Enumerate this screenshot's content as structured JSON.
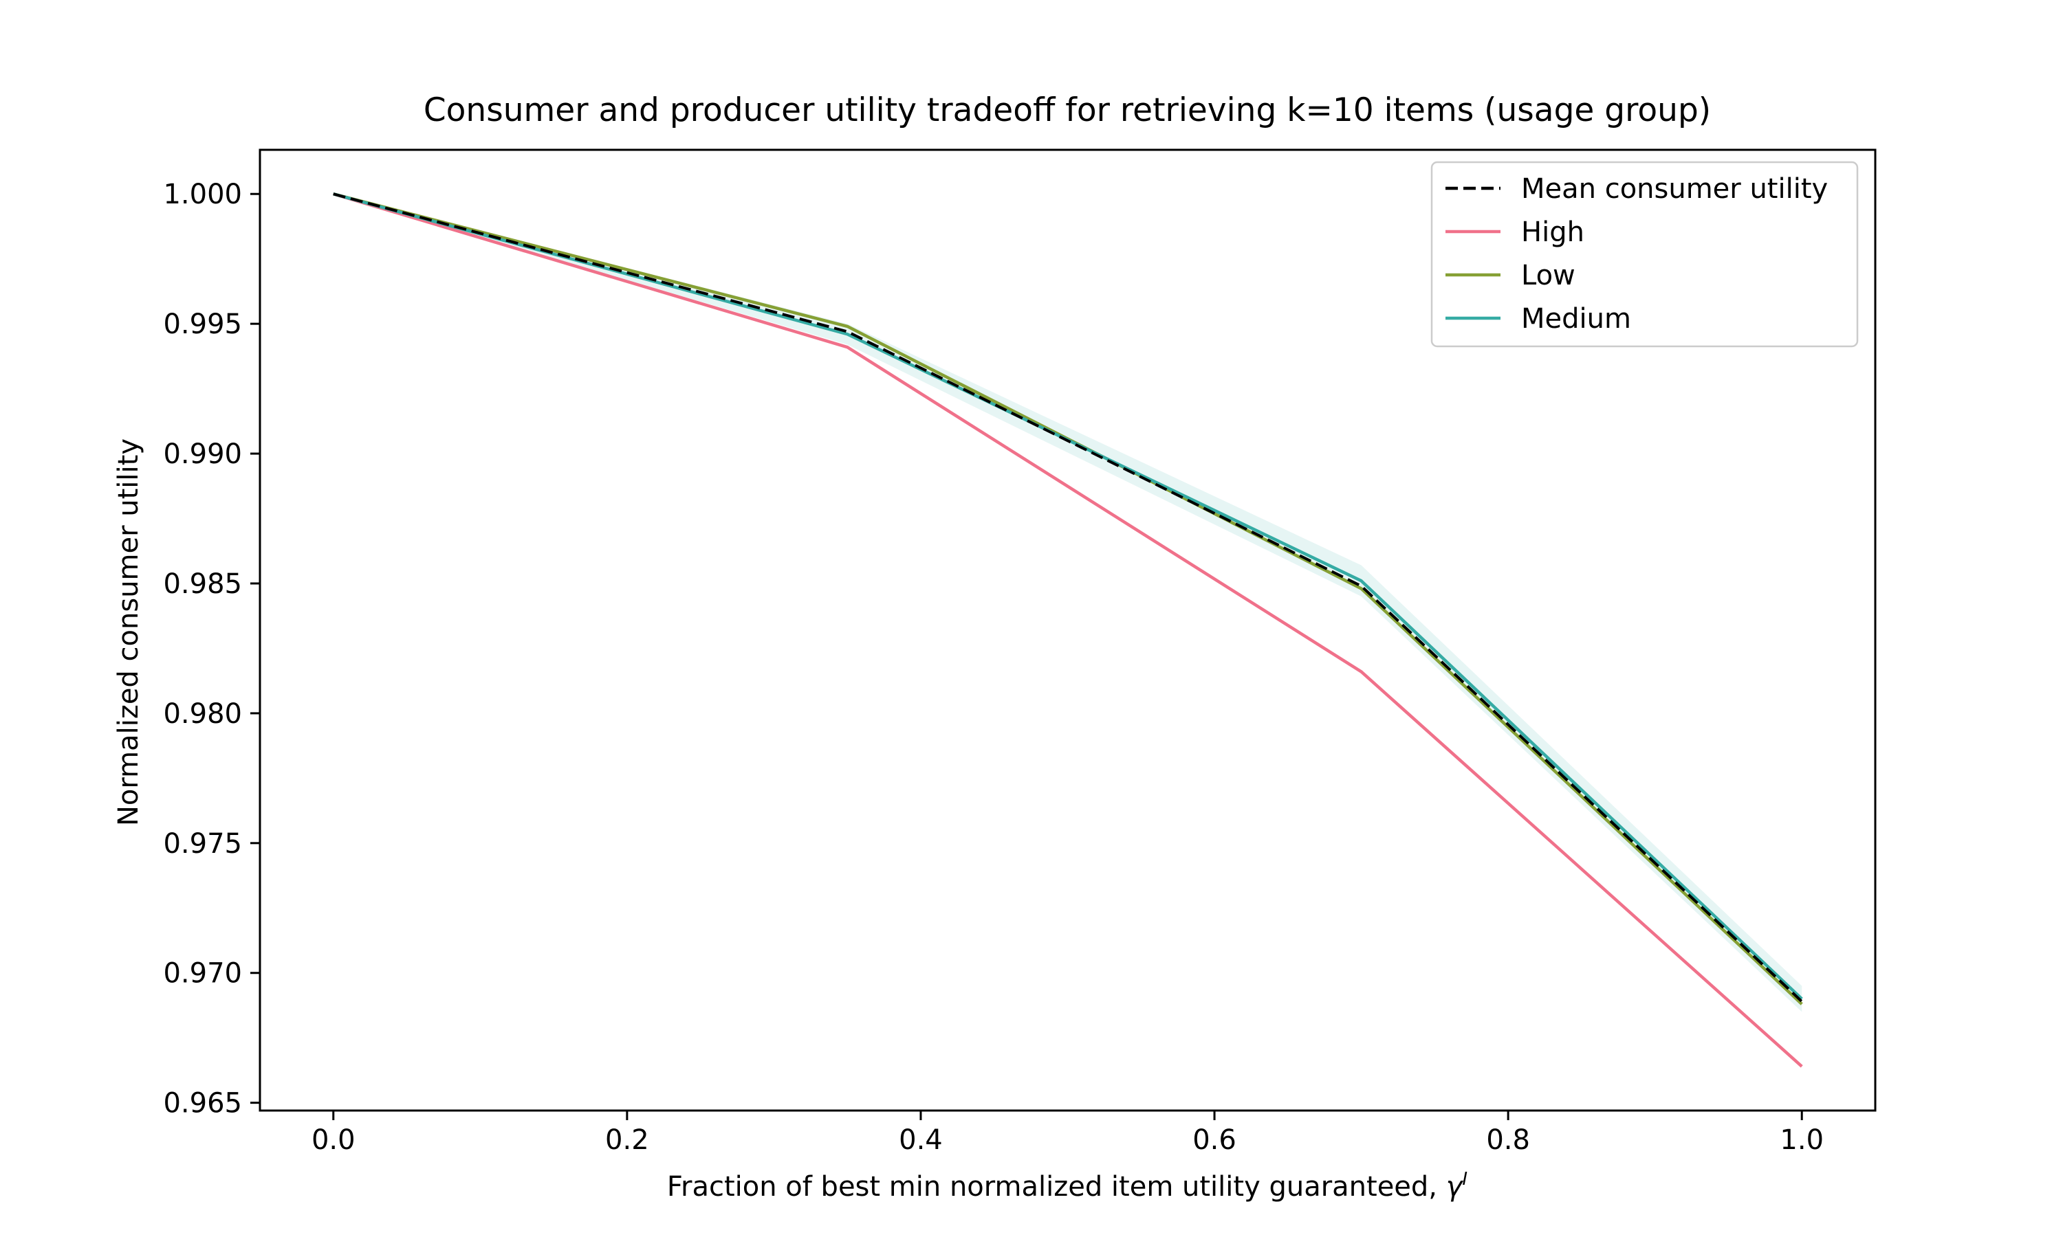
{
  "chart_data": {
    "type": "line",
    "title": "Consumer and producer utility tradeoff for retrieving k=10 items (usage  group)",
    "xlabel": "Fraction of best min normalized item utility guaranteed, ",
    "xlabel_symbol": "γ",
    "xlabel_superscript": "I",
    "ylabel": "Normalized consumer utility",
    "xlim": [
      -0.05,
      1.05
    ],
    "ylim": [
      0.9647,
      1.0017
    ],
    "x_ticks": [
      0.0,
      0.2,
      0.4,
      0.6,
      0.8,
      1.0
    ],
    "x_tick_labels": [
      "0.0",
      "0.2",
      "0.4",
      "0.6",
      "0.8",
      "1.0"
    ],
    "y_ticks": [
      0.965,
      0.97,
      0.975,
      0.98,
      0.985,
      0.99,
      0.995,
      1.0
    ],
    "y_tick_labels": [
      "0.965",
      "0.970",
      "0.975",
      "0.980",
      "0.985",
      "0.990",
      "0.995",
      "1.000"
    ],
    "x": [
      0.0,
      0.35,
      0.7,
      1.0
    ],
    "series": [
      {
        "name": "Mean consumer utility",
        "values": [
          1.0,
          0.9947,
          0.9849,
          0.9689
        ],
        "color": "#000000",
        "dashed": true
      },
      {
        "name": "High",
        "values": [
          1.0,
          0.9941,
          0.9816,
          0.9664
        ],
        "color": "#f0718a",
        "dashed": false
      },
      {
        "name": "Low",
        "values": [
          1.0,
          0.9949,
          0.9848,
          0.9688
        ],
        "color": "#86a034",
        "dashed": false
      },
      {
        "name": "Medium",
        "values": [
          1.0,
          0.9946,
          0.9851,
          0.969
        ],
        "color": "#35aba4",
        "dashed": false,
        "band_lower": [
          1.0,
          0.9942,
          0.9845,
          0.9685
        ],
        "band_upper": [
          1.0,
          0.995,
          0.9857,
          0.9695
        ]
      }
    ],
    "grid": false,
    "legend_position": "upper-right"
  }
}
